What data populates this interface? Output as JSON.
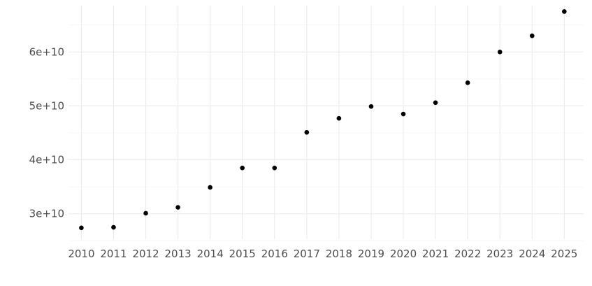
{
  "chart_data": {
    "type": "scatter",
    "title": "",
    "xlabel": "",
    "ylabel": "",
    "x": [
      2010,
      2011,
      2012,
      2013,
      2014,
      2015,
      2016,
      2017,
      2018,
      2019,
      2020,
      2021,
      2022,
      2023,
      2024,
      2025
    ],
    "y": [
      27400000000,
      27500000000,
      30100000000,
      31200000000,
      34900000000,
      38500000000,
      38500000000,
      45100000000,
      47700000000,
      49900000000,
      48500000000,
      50600000000,
      54300000000,
      60000000000,
      63000000000,
      67500000000
    ],
    "xticks": [
      "2010",
      "2011",
      "2012",
      "2013",
      "2014",
      "2015",
      "2016",
      "2017",
      "2018",
      "2019",
      "2020",
      "2021",
      "2022",
      "2023",
      "2024",
      "2025"
    ],
    "yticks": [
      {
        "value": 30000000000,
        "label": "3e+10"
      },
      {
        "value": 40000000000,
        "label": "4e+10"
      },
      {
        "value": 50000000000,
        "label": "5e+10"
      },
      {
        "value": 60000000000,
        "label": "6e+10"
      }
    ],
    "y_minor_ticks": [
      25000000000,
      35000000000,
      45000000000,
      55000000000,
      65000000000
    ],
    "xlim": [
      2009.6,
      2025.6
    ],
    "ylim": [
      25300000000,
      68600000000
    ],
    "point_color": "#000000",
    "grid": true,
    "legend": "none"
  }
}
